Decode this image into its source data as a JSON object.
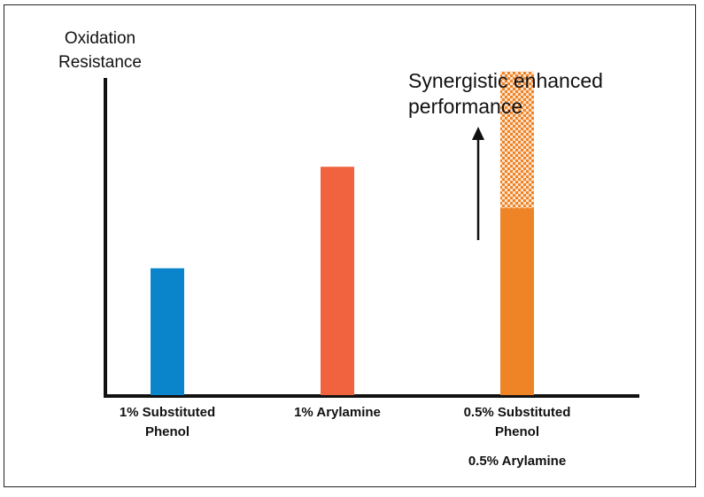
{
  "chart_data": {
    "type": "bar",
    "ylabel_lines": [
      "Oxidation",
      "Resistance"
    ],
    "ylim": [
      0,
      100
    ],
    "grid": false,
    "categories": [
      {
        "lines": [
          "1% Substituted",
          "Phenol"
        ],
        "extra": ""
      },
      {
        "lines": [
          "1% Arylamine"
        ],
        "extra": ""
      },
      {
        "lines": [
          "0.5% Substituted",
          "Phenol"
        ],
        "extra": "0.5% Arylamine"
      }
    ],
    "values": [
      40,
      72,
      59
    ],
    "enhancement": {
      "category_index": 2,
      "extra_value": 43
    },
    "colors": [
      "#0a85cc",
      "#f0633e",
      "#ef8427"
    ],
    "enhancement_color": "#ef8427",
    "annotation_lines": [
      "Synergistic enhanced",
      "performance"
    ]
  }
}
